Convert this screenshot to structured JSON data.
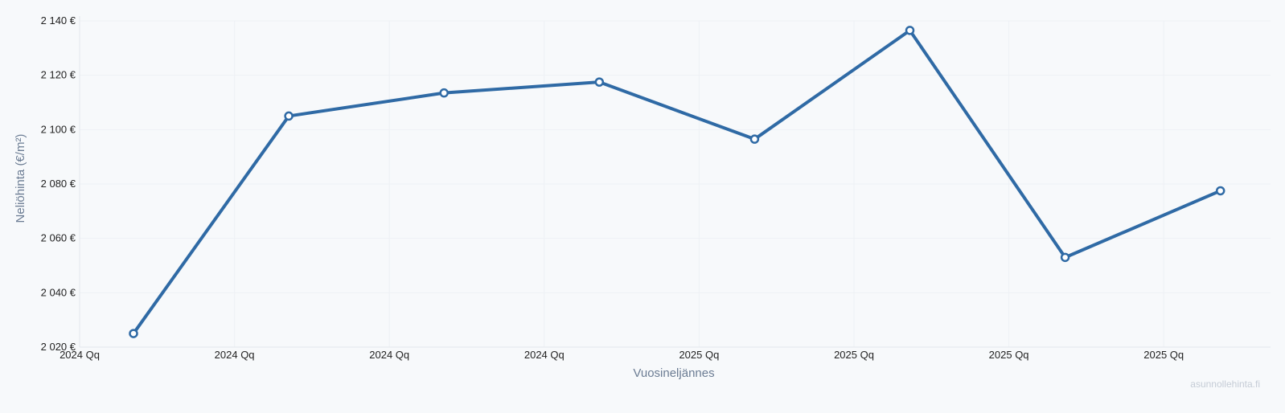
{
  "chart_data": {
    "type": "line",
    "xlabel": "Vuosineljännes",
    "ylabel": "Neliöhinta (€/m²)",
    "ylim": [
      2020,
      2140
    ],
    "y_ticks": [
      2020,
      2040,
      2060,
      2080,
      2100,
      2120,
      2140
    ],
    "y_tick_labels": [
      "2 020 €",
      "2 040 €",
      "2 060 €",
      "2 080 €",
      "2 100 €",
      "2 120 €",
      "2 140 €"
    ],
    "x_tick_labels": [
      "2024 Qq",
      "2024 Qq",
      "2024 Qq",
      "2024 Qq",
      "2025 Qq",
      "2025 Qq",
      "2025 Qq",
      "2025 Qq"
    ],
    "grid": true,
    "series": [
      {
        "values": [
          2025,
          2105,
          2113.5,
          2117.5,
          2096.5,
          2136.5,
          2053,
          2077.5
        ],
        "color": "#2f6aa5"
      }
    ]
  },
  "watermark": "asunnollehinta.fi"
}
